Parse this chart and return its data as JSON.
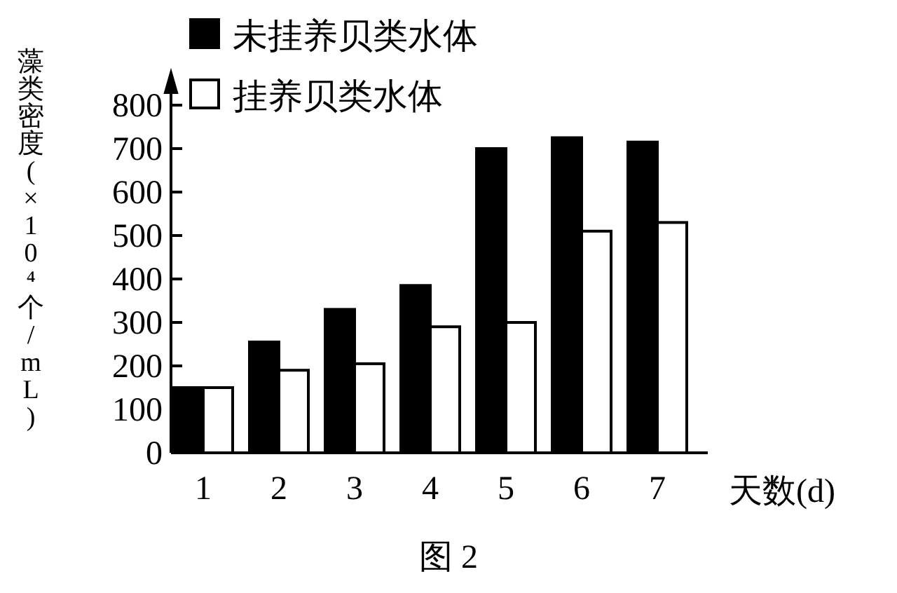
{
  "chart_data": {
    "type": "bar",
    "xlabel": "天数(d)",
    "ylabel": "藻类密度(×10⁴个/mL)",
    "categories": [
      "1",
      "2",
      "3",
      "4",
      "5",
      "6",
      "7"
    ],
    "series": [
      {
        "name": "未挂养贝类水体",
        "color": "#000000",
        "values": [
          150,
          255,
          330,
          385,
          700,
          725,
          715
        ]
      },
      {
        "name": "挂养贝类水体",
        "color": "#ffffff",
        "values": [
          150,
          190,
          205,
          290,
          300,
          510,
          530
        ]
      }
    ],
    "ylim": [
      0,
      800
    ],
    "yticks": [
      0,
      100,
      200,
      300,
      400,
      500,
      600,
      700,
      800
    ],
    "legend": "top",
    "grid": false,
    "annotations": [
      "图 2"
    ]
  }
}
